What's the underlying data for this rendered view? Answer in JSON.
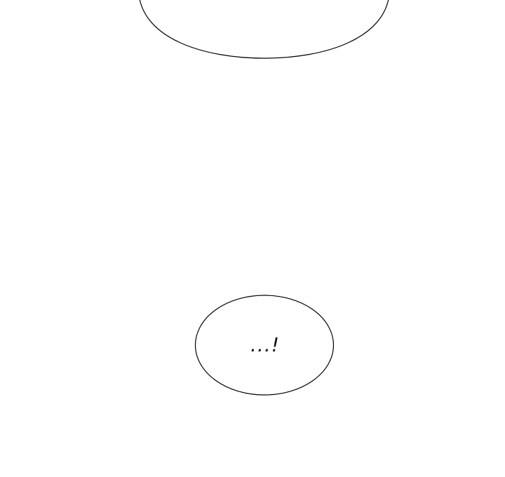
{
  "speech_bubbles": {
    "top_bubble_text": "",
    "bottom_bubble_text": "...!"
  },
  "colors": {
    "background": "#ffffff",
    "outline": "#000000",
    "text": "#111111"
  }
}
